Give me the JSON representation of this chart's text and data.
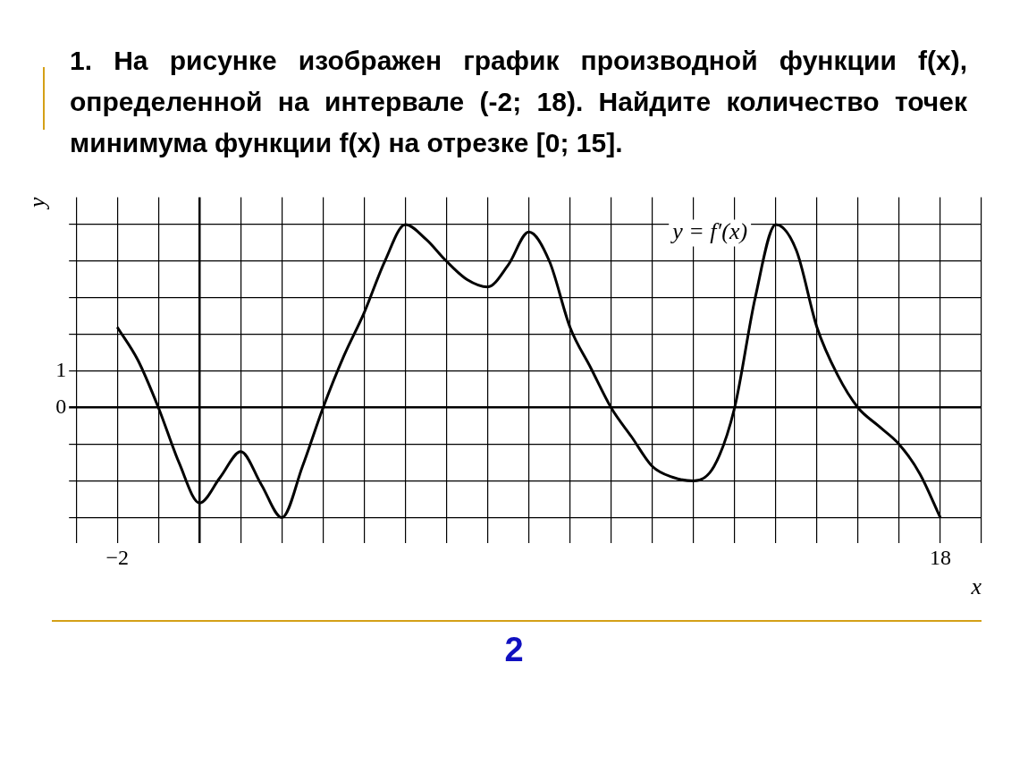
{
  "chart_data": {
    "type": "line",
    "title": "1.  На рисунке изображен график производной функции f(x), определенной на интервале (-2; 18). Найдите количество точек минимума функции f(x) на отрезке [0; 15].",
    "xlabel": "x",
    "ylabel": "y",
    "x": [
      -2,
      -1.5,
      -1,
      -0.5,
      0,
      0.5,
      1,
      1.5,
      2,
      2.5,
      3,
      3.5,
      4,
      4.5,
      5,
      5.5,
      6,
      6.5,
      7,
      7.5,
      8,
      8.5,
      9,
      9.5,
      10,
      10.5,
      11,
      11.5,
      12,
      12.5,
      13,
      13.5,
      14,
      14.5,
      15,
      15.5,
      16,
      16.5,
      17,
      17.5,
      18
    ],
    "series": [
      {
        "color": "#000000",
        "values": [
          2.2,
          1.3,
          0,
          -1.5,
          -2.6,
          -1.9,
          -1.2,
          -2.1,
          -3,
          -1.6,
          0,
          1.4,
          2.6,
          4.0,
          5,
          4.6,
          4.0,
          3.5,
          3.3,
          3.9,
          4.8,
          4.0,
          2.2,
          1.1,
          0,
          -0.8,
          -1.6,
          -1.9,
          -2,
          -1.6,
          0,
          3.0,
          5,
          4.3,
          2.2,
          0.9,
          0,
          -0.5,
          -1.0,
          -1.8,
          -3
        ]
      }
    ],
    "xlim": [
      -3,
      19
    ],
    "ylim": [
      -3.5,
      5.75
    ],
    "xticks": [
      {
        "value": -3,
        "label": null
      },
      {
        "value": -2,
        "label": "−2"
      },
      {
        "value": -1,
        "label": null
      },
      {
        "value": 0,
        "label": null
      },
      {
        "value": 1,
        "label": null
      },
      {
        "value": 2,
        "label": null
      },
      {
        "value": 3,
        "label": null
      },
      {
        "value": 4,
        "label": null
      },
      {
        "value": 5,
        "label": null
      },
      {
        "value": 6,
        "label": null
      },
      {
        "value": 7,
        "label": null
      },
      {
        "value": 8,
        "label": null
      },
      {
        "value": 9,
        "label": null
      },
      {
        "value": 10,
        "label": null
      },
      {
        "value": 11,
        "label": null
      },
      {
        "value": 12,
        "label": null
      },
      {
        "value": 13,
        "label": null
      },
      {
        "value": 14,
        "label": null
      },
      {
        "value": 15,
        "label": null
      },
      {
        "value": 16,
        "label": null
      },
      {
        "value": 17,
        "label": null
      },
      18,
      {
        "value": 19,
        "label": null
      }
    ],
    "yticks": [
      {
        "value": -3,
        "label": null
      },
      {
        "value": -2,
        "label": null
      },
      {
        "value": -1,
        "label": null
      },
      0,
      1,
      {
        "value": 2,
        "label": null
      },
      {
        "value": 3,
        "label": null
      },
      {
        "value": 4,
        "label": null
      },
      {
        "value": 5,
        "label": null
      }
    ],
    "grid": true,
    "legend": false,
    "marker": "none",
    "line_style": "solid",
    "annotations": [
      "y = f′(x)",
      "2"
    ]
  }
}
